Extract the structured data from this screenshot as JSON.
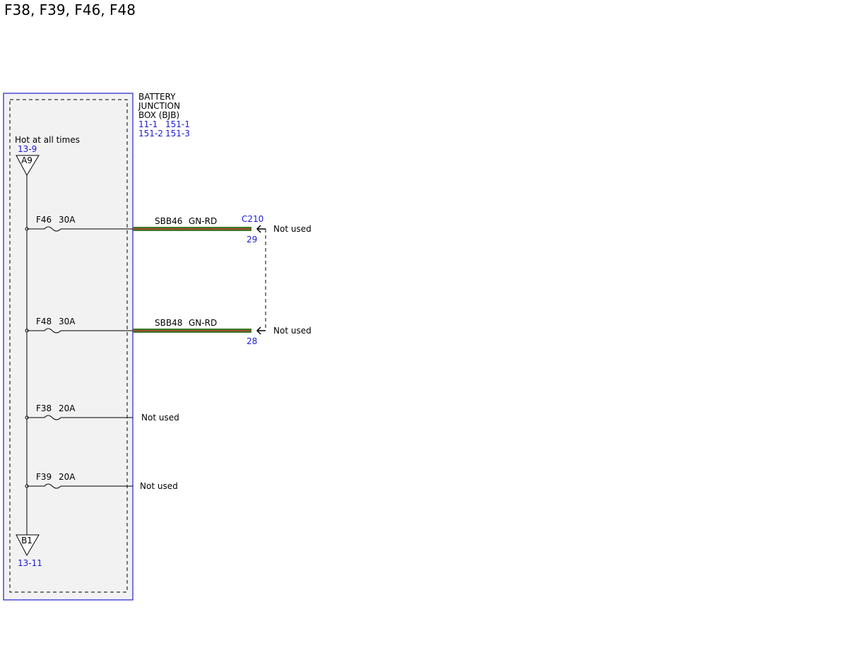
{
  "title": "F38, F39, F46, F48",
  "junction_box": {
    "name_lines": [
      "BATTERY",
      "JUNCTION",
      "BOX (BJB)"
    ],
    "refs": [
      "11-1",
      "151-1",
      "151-2",
      "151-3"
    ]
  },
  "power_source": {
    "label": "Hot at all times",
    "ref": "13-9",
    "pin": "A9"
  },
  "ground": {
    "pin": "B1",
    "ref": "13-11"
  },
  "connector": {
    "name": "C210"
  },
  "fuses": [
    {
      "name": "F46",
      "rating": "30A",
      "circuit": "SBB46",
      "wire_color": "GN-RD",
      "pin": "29",
      "status": "Not used"
    },
    {
      "name": "F48",
      "rating": "30A",
      "circuit": "SBB48",
      "wire_color": "GN-RD",
      "pin": "28",
      "status": "Not used"
    },
    {
      "name": "F38",
      "rating": "20A",
      "status": "Not used"
    },
    {
      "name": "F39",
      "rating": "20A",
      "status": "Not used"
    }
  ]
}
